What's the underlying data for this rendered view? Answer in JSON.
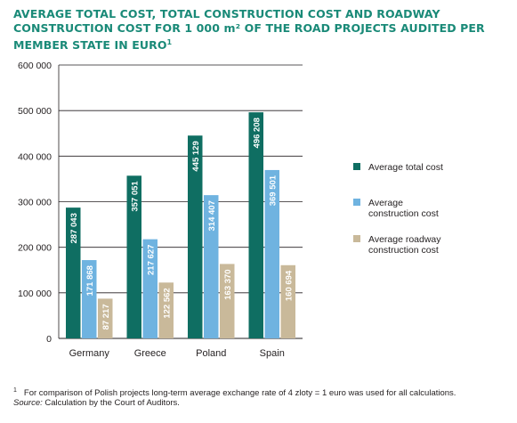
{
  "title": {
    "text": "AVERAGE TOTAL COST, TOTAL CONSTRUCTION COST AND ROADWAY CONSTRUCTION COST FOR 1 000 m² OF THE ROAD PROJECTS AUDITED PER MEMBER STATE IN EURO",
    "footnote_mark": "1"
  },
  "chart_data": {
    "type": "bar",
    "categories": [
      "Germany",
      "Greece",
      "Poland",
      "Spain"
    ],
    "series": [
      {
        "name": "Average total cost",
        "color": "#0f6e62",
        "values": [
          287043,
          357051,
          445129,
          496208
        ],
        "labels": [
          "287 043",
          "357 051",
          "445 129",
          "496 208"
        ]
      },
      {
        "name": "Average construction cost",
        "color": "#6fb3e0",
        "values": [
          171868,
          217627,
          314407,
          369501
        ],
        "labels": [
          "171 868",
          "217 627",
          "314 407",
          "369 501"
        ]
      },
      {
        "name": "Average roadway construction cost",
        "color": "#c9b99a",
        "values": [
          87217,
          122562,
          163370,
          160694
        ],
        "labels": [
          "87 217",
          "122 562",
          "163 370",
          "160 694"
        ]
      }
    ],
    "legend_lines": [
      [
        "Average total cost"
      ],
      [
        "Average",
        "construction cost"
      ],
      [
        "Average roadway",
        "construction cost"
      ]
    ],
    "y_ticks": [
      {
        "value": 0,
        "label": "0"
      },
      {
        "value": 100000,
        "label": "100 000"
      },
      {
        "value": 200000,
        "label": "200 000"
      },
      {
        "value": 300000,
        "label": "300 000"
      },
      {
        "value": 400000,
        "label": "400 000"
      },
      {
        "value": 500000,
        "label": "500 000"
      },
      {
        "value": 600000,
        "label": "600 000"
      }
    ],
    "ylim": [
      0,
      600000
    ],
    "grid": true,
    "legend_position": "right",
    "xlabel": "",
    "ylabel": ""
  },
  "footnote": {
    "mark": "1",
    "text": "For comparison of Polish projects long-term average exchange rate of 4 zloty = 1 euro was used for all calculations."
  },
  "source": {
    "prefix": "Source:",
    "text": " Calculation by the Court of Auditors."
  }
}
